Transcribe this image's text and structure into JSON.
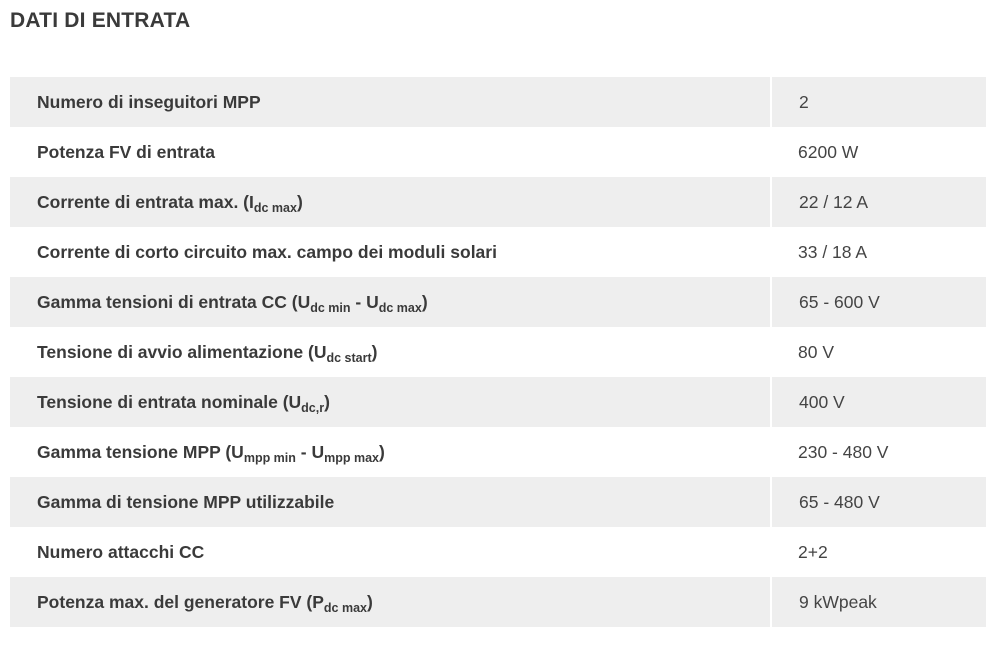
{
  "section": {
    "title": "DATI DI ENTRATA"
  },
  "rows": [
    {
      "label": {
        "main": "Numero di inseguitori MPP"
      },
      "value": "2"
    },
    {
      "label": {
        "main": "Potenza FV di entrata"
      },
      "value": "6200 W"
    },
    {
      "label": {
        "main": "Corrente di entrata max. (I",
        "sub1": "dc max",
        "end": ")"
      },
      "value": "22 / 12 A"
    },
    {
      "label": {
        "main": "Corrente di corto circuito max. campo dei moduli solari"
      },
      "value": "33 / 18 A"
    },
    {
      "label": {
        "main": "Gamma tensioni di entrata CC (U",
        "sub1": "dc min",
        "mid": " - U",
        "sub2": "dc max",
        "end": ")"
      },
      "value": "65 - 600 V"
    },
    {
      "label": {
        "main": "Tensione di avvio alimentazione (U",
        "sub1": "dc start",
        "end": ")"
      },
      "value": "80 V"
    },
    {
      "label": {
        "main": "Tensione di entrata nominale (U",
        "sub1": "dc,r",
        "end": ")"
      },
      "value": "400 V"
    },
    {
      "label": {
        "main": "Gamma tensione MPP (U",
        "sub1": "mpp min",
        "mid": " - U",
        "sub2": "mpp max",
        "end": ")"
      },
      "value": "230 - 480 V"
    },
    {
      "label": {
        "main": "Gamma di tensione MPP utilizzabile"
      },
      "value": "65 - 480 V"
    },
    {
      "label": {
        "main": "Numero attacchi CC"
      },
      "value": "2+2"
    },
    {
      "label": {
        "main": "Potenza max. del generatore FV (P",
        "sub1": "dc max",
        "end": ")"
      },
      "value": "9 kWpeak"
    }
  ]
}
